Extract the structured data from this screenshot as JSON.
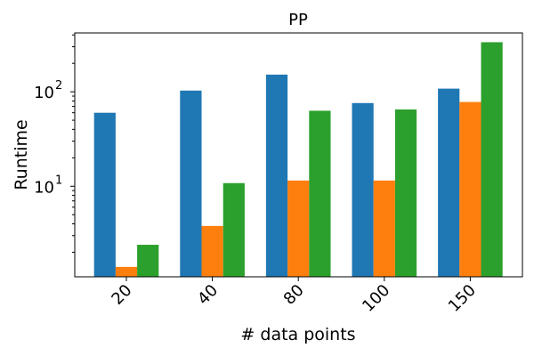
{
  "chart_data": {
    "type": "bar",
    "title": "PP",
    "xlabel": "# data points",
    "ylabel": "Runtime",
    "yscale": "log",
    "ylim": [
      1.1,
      420
    ],
    "yticks": [
      {
        "value": 10,
        "base": "10",
        "exp": "1"
      },
      {
        "value": 100,
        "base": "10",
        "exp": "2"
      }
    ],
    "categories": [
      "20",
      "40",
      "80",
      "100",
      "150"
    ],
    "series": [
      {
        "color": "#1f77b4",
        "values": [
          60,
          103,
          152,
          76,
          108
        ]
      },
      {
        "color": "#ff7f0e",
        "values": [
          1.4,
          3.8,
          11.5,
          11.5,
          78
        ]
      },
      {
        "color": "#2ca02c",
        "values": [
          2.4,
          10.8,
          63,
          65,
          335
        ]
      }
    ],
    "legend": "none",
    "grid": false
  }
}
